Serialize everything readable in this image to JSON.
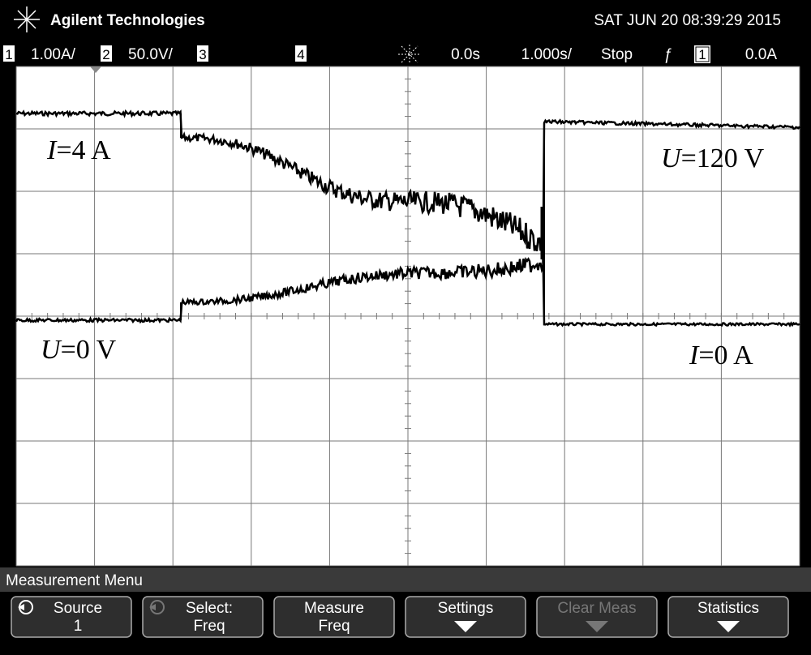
{
  "header": {
    "brand": "Agilent Technologies",
    "datetime": "SAT JUN 20 08:39:29 2015"
  },
  "status_bar": {
    "ch1_num": "1",
    "ch1_scale": "1.00A/",
    "ch2_num": "2",
    "ch2_scale": "50.0V/",
    "ch3_num": "3",
    "ch4_num": "4",
    "delay": "0.0s",
    "timebase": "1.000s/",
    "run_state": "Stop",
    "trigger_source": "1",
    "trigger_level": "0.0A"
  },
  "annotations": [
    {
      "variable": "I",
      "text": "=4 A"
    },
    {
      "variable": "U",
      "text": "=120 V"
    },
    {
      "variable": "U",
      "text": "=0 V"
    },
    {
      "variable": "I",
      "text": "=0 A"
    }
  ],
  "menu": {
    "title": "Measurement Menu",
    "softkeys": [
      {
        "line1": "Source",
        "line2": "1"
      },
      {
        "line1": "Select:",
        "line2": "Freq"
      },
      {
        "line1": "Measure",
        "line2": "Freq"
      },
      {
        "line1": "Settings"
      },
      {
        "line1": "Clear Meas"
      },
      {
        "line1": "Statistics"
      }
    ]
  }
}
